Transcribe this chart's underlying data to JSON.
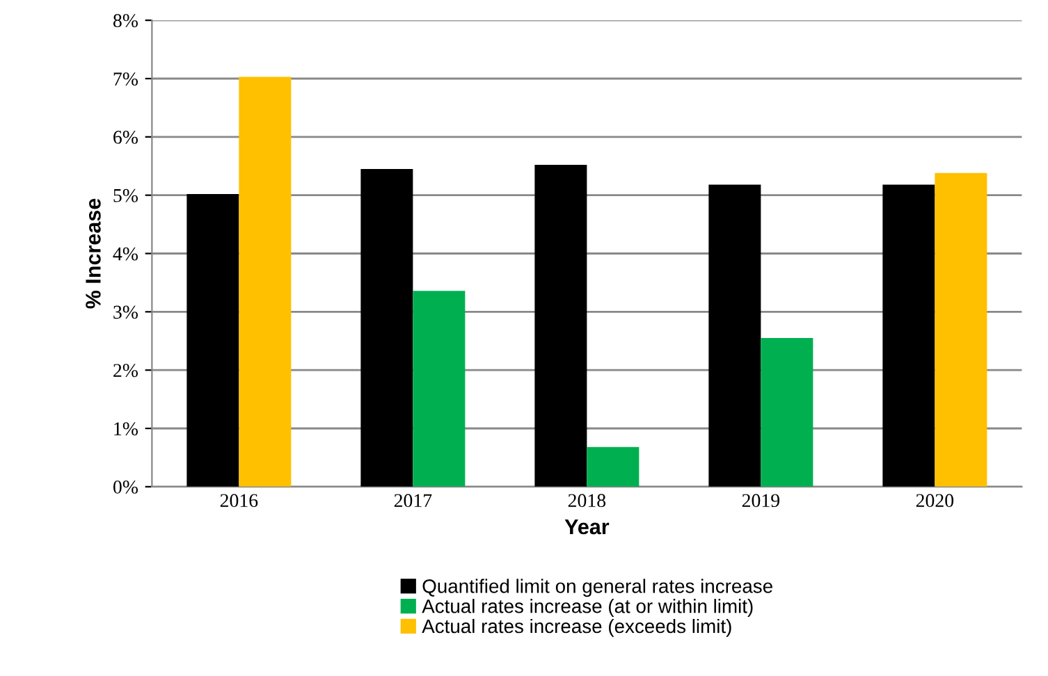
{
  "chart_data": {
    "type": "bar",
    "xlabel": "Year",
    "ylabel": "% Increase",
    "categories": [
      "2016",
      "2017",
      "2018",
      "2019",
      "2020"
    ],
    "series": [
      {
        "name": "Quantified limit on general rates increase",
        "color": "#000000",
        "values": [
          5.02,
          5.45,
          5.52,
          5.18,
          5.18
        ]
      },
      {
        "name": "Actual rates increase (at or within limit)",
        "color": "#00b050",
        "values": [
          null,
          3.36,
          0.68,
          2.55,
          null
        ]
      },
      {
        "name": "Actual rates increase (exceeds limit)",
        "color": "#ffc000",
        "values": [
          7.03,
          null,
          null,
          null,
          5.38
        ]
      }
    ],
    "ylim": [
      0,
      8
    ],
    "yticks": [
      {
        "value": 0,
        "label": "0%"
      },
      {
        "value": 1,
        "label": "1%"
      },
      {
        "value": 2,
        "label": "2%"
      },
      {
        "value": 3,
        "label": "3%"
      },
      {
        "value": 4,
        "label": "4%"
      },
      {
        "value": 5,
        "label": "5%"
      },
      {
        "value": 6,
        "label": "6%"
      },
      {
        "value": 7,
        "label": "7%"
      },
      {
        "value": 8,
        "label": "8%"
      }
    ],
    "grid": "y",
    "legend": "bottom"
  }
}
